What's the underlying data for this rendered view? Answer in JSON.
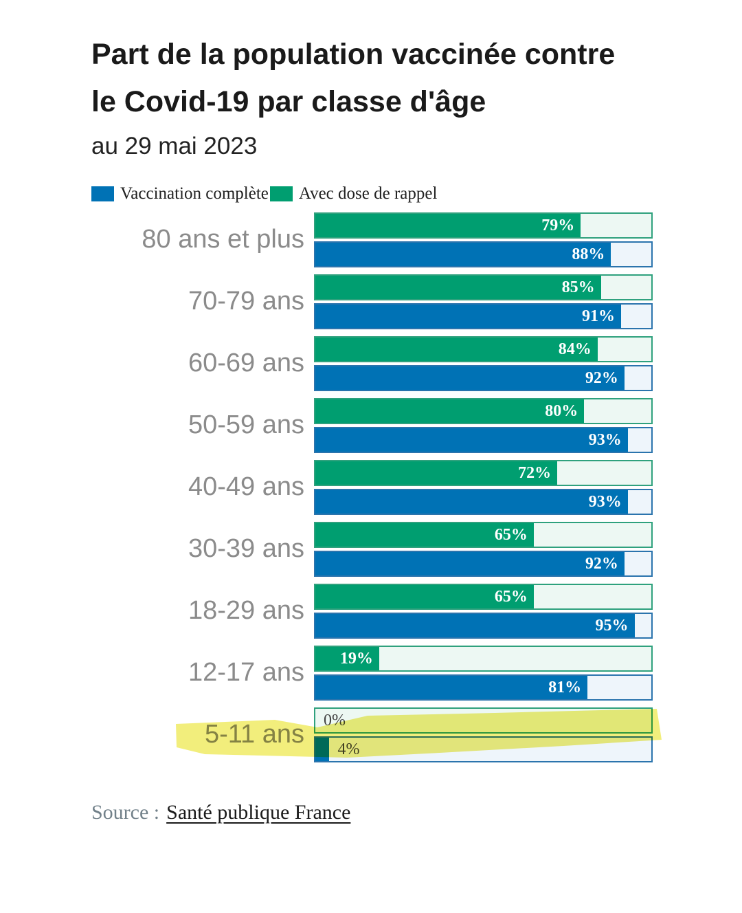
{
  "title": "Part de la population vaccinée contre le Covid-19 par classe d'âge",
  "subtitle": "au 29 mai 2023",
  "legend": [
    {
      "label": "Vaccination complète",
      "color": "#0072b5"
    },
    {
      "label": "Avec dose de rappel",
      "color": "#009e70"
    }
  ],
  "source": {
    "prefix": "Source :",
    "link_text": "Santé publique France"
  },
  "colors": {
    "complete_fill": "#0072b5",
    "complete_track_bg": "#eef5fb",
    "complete_track_border": "#2b74ad",
    "booster_fill": "#009e70",
    "booster_track_bg": "#edf8f3",
    "booster_track_border": "#2fa17d",
    "highlight": "#f2ee7c",
    "age_label_gray": "#8b8b8b"
  },
  "chart_data": {
    "type": "bar",
    "orientation": "horizontal",
    "title": "Part de la population vaccinée contre le Covid-19 par classe d'âge",
    "subtitle": "au 29 mai 2023",
    "categories": [
      "80 ans et plus",
      "70-79 ans",
      "60-69 ans",
      "50-59 ans",
      "40-49 ans",
      "30-39 ans",
      "18-29 ans",
      "12-17 ans",
      "5-11 ans"
    ],
    "series": [
      {
        "name": "Avec dose de rappel",
        "color": "#009e70",
        "row_in_group": "top",
        "values": [
          79,
          85,
          84,
          80,
          72,
          65,
          65,
          19,
          0
        ]
      },
      {
        "name": "Vaccination complète",
        "color": "#0072b5",
        "row_in_group": "bottom",
        "values": [
          88,
          91,
          92,
          93,
          93,
          92,
          95,
          81,
          4
        ]
      }
    ],
    "value_suffix": "%",
    "xlim": [
      0,
      100
    ],
    "legend_position": "top",
    "grid": false,
    "highlight": {
      "category": "12-17 ans",
      "series": "Vaccination complète",
      "value": 81,
      "style": "yellow marker stroke"
    }
  }
}
